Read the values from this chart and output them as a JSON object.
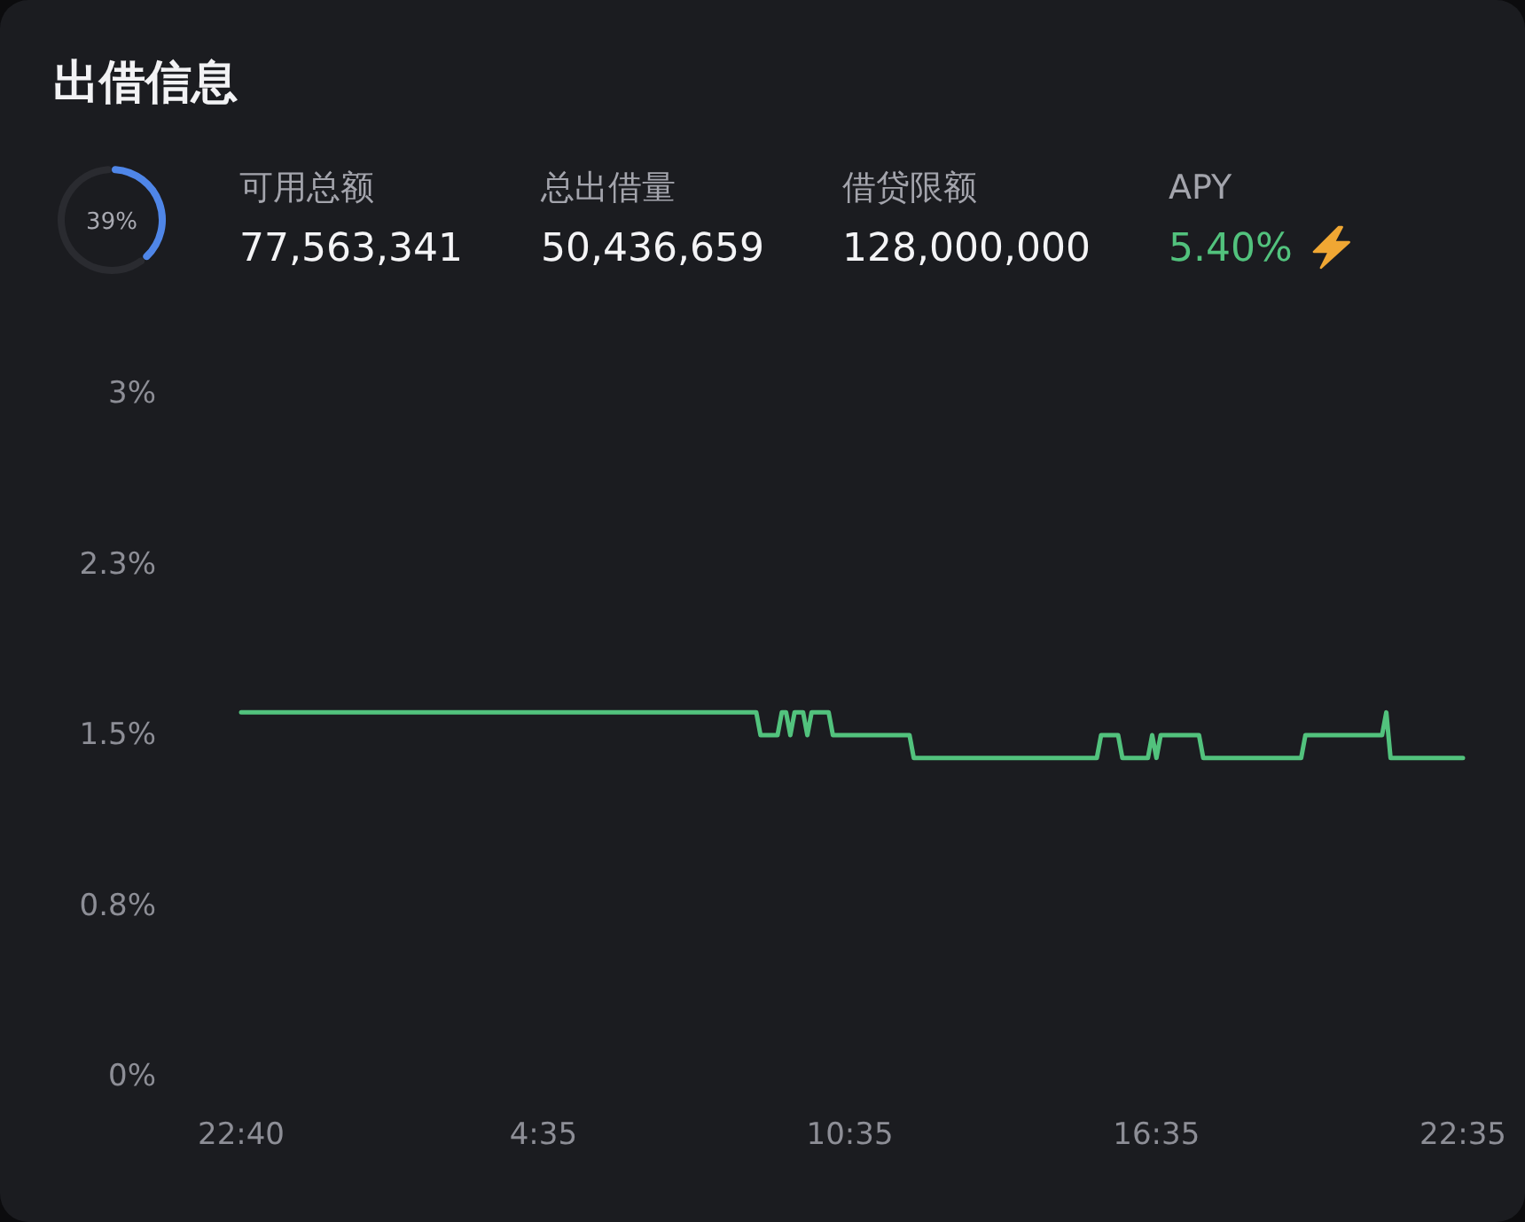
{
  "chart_data": [
    {
      "type": "donut",
      "title": "出借信息",
      "categories": [
        null,
        null
      ],
      "values": [
        39,
        61
      ],
      "colors": [
        "#4f86e8",
        "#2a2b30"
      ],
      "annotations": [
        "39%"
      ]
    },
    {
      "type": "other",
      "categories": [
        "可用总额",
        "总出借量",
        "借贷限额",
        "APY"
      ],
      "value_labels": [
        "77,563,341",
        "50,436,659",
        "128,000,000",
        "5.40%"
      ],
      "colors": [
        "#f4f4f6",
        "#f4f4f6",
        "#f4f4f6",
        "#52c27d"
      ]
    },
    {
      "type": "line",
      "categories": [
        "22:40",
        null,
        null,
        null,
        null,
        null,
        null,
        null,
        null,
        null,
        null,
        null,
        null,
        null,
        null,
        null,
        null,
        null,
        null,
        null,
        null,
        null,
        null,
        null,
        null,
        null,
        null,
        null,
        null,
        null,
        null,
        null,
        null,
        null,
        null,
        null,
        null,
        null,
        null,
        null,
        null,
        null,
        null,
        null,
        null,
        null,
        null,
        null,
        null,
        null,
        null,
        null,
        null,
        null,
        null,
        null,
        null,
        null,
        null,
        null,
        null,
        null,
        null,
        null,
        null,
        null,
        null,
        null,
        null,
        null,
        null,
        "4:35",
        null,
        null,
        null,
        null,
        null,
        null,
        null,
        null,
        null,
        null,
        null,
        null,
        null,
        null,
        null,
        null,
        null,
        null,
        null,
        null,
        null,
        null,
        null,
        null,
        null,
        null,
        null,
        null,
        null,
        null,
        null,
        null,
        null,
        null,
        null,
        null,
        null,
        null,
        null,
        null,
        null,
        null,
        null,
        null,
        null,
        null,
        null,
        null,
        null,
        null,
        null,
        null,
        null,
        null,
        null,
        null,
        null,
        null,
        null,
        null,
        null,
        null,
        null,
        null,
        null,
        null,
        null,
        null,
        null,
        null,
        null,
        "10:35",
        null,
        null,
        null,
        null,
        null,
        null,
        null,
        null,
        null,
        null,
        null,
        null,
        null,
        null,
        null,
        null,
        null,
        null,
        null,
        null,
        null,
        null,
        null,
        null,
        null,
        null,
        null,
        null,
        null,
        null,
        null,
        null,
        null,
        null,
        null,
        null,
        null,
        null,
        null,
        null,
        null,
        null,
        null,
        null,
        null,
        null,
        null,
        null,
        null,
        null,
        null,
        null,
        null,
        null,
        null,
        null,
        null,
        null,
        null,
        null,
        null,
        null,
        null,
        null,
        null,
        null,
        null,
        null,
        null,
        null,
        null,
        "16:35",
        null,
        null,
        null,
        null,
        null,
        null,
        null,
        null,
        null,
        null,
        null,
        null,
        null,
        null,
        null,
        null,
        null,
        null,
        null,
        null,
        null,
        null,
        null,
        null,
        null,
        null,
        null,
        null,
        null,
        null,
        null,
        null,
        null,
        null,
        null,
        null,
        null,
        null,
        null,
        null,
        null,
        null,
        null,
        null,
        null,
        null,
        null,
        null,
        null,
        null,
        null,
        null,
        null,
        null,
        null,
        null,
        null,
        null,
        null,
        null,
        null,
        null,
        null,
        null,
        null,
        null,
        null,
        null,
        null,
        null,
        null,
        "22:35"
      ],
      "series": [
        {
          "color": "#52c27d",
          "values": [
            1.6,
            1.6,
            1.6,
            1.6,
            1.6,
            1.6,
            1.6,
            1.6,
            1.6,
            1.6,
            1.6,
            1.6,
            1.6,
            1.6,
            1.6,
            1.6,
            1.6,
            1.6,
            1.6,
            1.6,
            1.6,
            1.6,
            1.6,
            1.6,
            1.6,
            1.6,
            1.6,
            1.6,
            1.6,
            1.6,
            1.6,
            1.6,
            1.6,
            1.6,
            1.6,
            1.6,
            1.6,
            1.6,
            1.6,
            1.6,
            1.6,
            1.6,
            1.6,
            1.6,
            1.6,
            1.6,
            1.6,
            1.6,
            1.6,
            1.6,
            1.6,
            1.6,
            1.6,
            1.6,
            1.6,
            1.6,
            1.6,
            1.6,
            1.6,
            1.6,
            1.6,
            1.6,
            1.6,
            1.6,
            1.6,
            1.6,
            1.6,
            1.6,
            1.6,
            1.6,
            1.6,
            1.6,
            1.6,
            1.6,
            1.6,
            1.6,
            1.6,
            1.6,
            1.6,
            1.6,
            1.6,
            1.6,
            1.6,
            1.6,
            1.6,
            1.6,
            1.6,
            1.6,
            1.6,
            1.6,
            1.6,
            1.6,
            1.6,
            1.6,
            1.6,
            1.6,
            1.6,
            1.6,
            1.6,
            1.6,
            1.6,
            1.6,
            1.6,
            1.6,
            1.6,
            1.6,
            1.6,
            1.6,
            1.6,
            1.6,
            1.6,
            1.6,
            1.6,
            1.6,
            1.6,
            1.6,
            1.6,
            1.6,
            1.6,
            1.6,
            1.6,
            1.6,
            1.5,
            1.5,
            1.5,
            1.5,
            1.5,
            1.6,
            1.6,
            1.5,
            1.6,
            1.6,
            1.6,
            1.5,
            1.6,
            1.6,
            1.6,
            1.6,
            1.6,
            1.5,
            1.5,
            1.5,
            1.5,
            1.5,
            1.5,
            1.5,
            1.5,
            1.5,
            1.5,
            1.5,
            1.5,
            1.5,
            1.5,
            1.5,
            1.5,
            1.5,
            1.5,
            1.5,
            1.4,
            1.4,
            1.4,
            1.4,
            1.4,
            1.4,
            1.4,
            1.4,
            1.4,
            1.4,
            1.4,
            1.4,
            1.4,
            1.4,
            1.4,
            1.4,
            1.4,
            1.4,
            1.4,
            1.4,
            1.4,
            1.4,
            1.4,
            1.4,
            1.4,
            1.4,
            1.4,
            1.4,
            1.4,
            1.4,
            1.4,
            1.4,
            1.4,
            1.4,
            1.4,
            1.4,
            1.4,
            1.4,
            1.4,
            1.4,
            1.4,
            1.4,
            1.4,
            1.4,
            1.5,
            1.5,
            1.5,
            1.5,
            1.5,
            1.4,
            1.4,
            1.4,
            1.4,
            1.4,
            1.4,
            1.4,
            1.5,
            1.4,
            1.5,
            1.5,
            1.5,
            1.5,
            1.5,
            1.5,
            1.5,
            1.5,
            1.5,
            1.5,
            1.4,
            1.4,
            1.4,
            1.4,
            1.4,
            1.4,
            1.4,
            1.4,
            1.4,
            1.4,
            1.4,
            1.4,
            1.4,
            1.4,
            1.4,
            1.4,
            1.4,
            1.4,
            1.4,
            1.4,
            1.4,
            1.4,
            1.4,
            1.4,
            1.5,
            1.5,
            1.5,
            1.5,
            1.5,
            1.5,
            1.5,
            1.5,
            1.5,
            1.5,
            1.5,
            1.5,
            1.5,
            1.5,
            1.5,
            1.5,
            1.5,
            1.5,
            1.5,
            1.6,
            1.4,
            1.4,
            1.4,
            1.4,
            1.4,
            1.4,
            1.4,
            1.4,
            1.4,
            1.4,
            1.4,
            1.4,
            1.4,
            1.4,
            1.4,
            1.4,
            1.4,
            1.4
          ]
        }
      ],
      "ylim": [
        0,
        3
      ],
      "yticks": [
        {
          "value": 0,
          "label": "0%"
        },
        {
          "value": 0.75,
          "label": "0.8%"
        },
        {
          "value": 1.5,
          "label": "1.5%"
        },
        {
          "value": 2.25,
          "label": "2.3%"
        },
        {
          "value": 3,
          "label": "3%"
        }
      ]
    }
  ]
}
